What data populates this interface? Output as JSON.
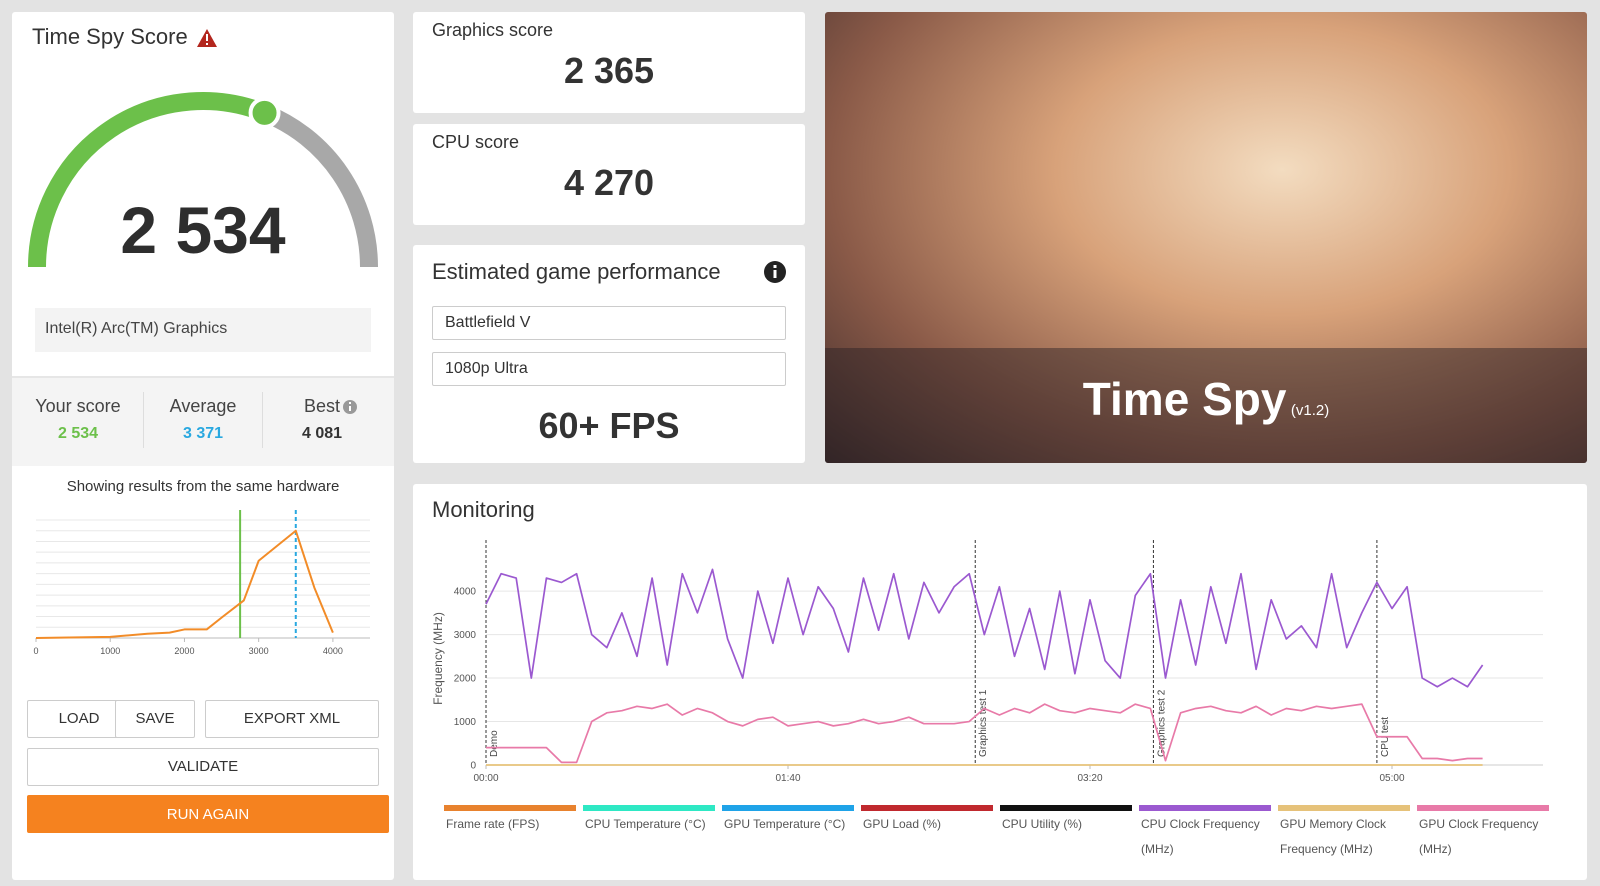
{
  "score_panel": {
    "title": "Time Spy Score",
    "score": {
      "value": 2534,
      "label": "2 534"
    },
    "hardware": "Intel(R) Arc(TM) Graphics",
    "stats": [
      {
        "name": "Your score",
        "value": {
          "value": 2534,
          "label": "2 534"
        },
        "color": "#6cc04a"
      },
      {
        "name": "Average",
        "value": {
          "value": 3371,
          "label": "3 371"
        },
        "color": "#29a8e0"
      },
      {
        "name": "Best",
        "value": {
          "value": 4081,
          "label": "4 081"
        },
        "color": "#333333"
      }
    ],
    "note": "Showing results from the same hardware"
  },
  "buttons": {
    "load": "LOAD",
    "save": "SAVE",
    "export": "EXPORT XML",
    "validate": "VALIDATE",
    "run": "RUN AGAIN"
  },
  "graphics": {
    "label": "Graphics score",
    "score": {
      "value": 2365,
      "label": "2 365"
    }
  },
  "cpu": {
    "label": "CPU score",
    "score": {
      "value": 4270,
      "label": "4 270"
    }
  },
  "game_performance": {
    "title": "Estimated game performance",
    "game": "Battlefield V",
    "preset": "1080p Ultra",
    "fps": "60+ FPS"
  },
  "banner": {
    "title": "Time Spy",
    "version": "(v1.2)"
  },
  "monitoring_title": "Monitoring",
  "chart_data": [
    {
      "type": "line",
      "x": [
        0,
        1000,
        1500,
        1800,
        2000,
        2300,
        2500,
        2800,
        3000,
        3500,
        3750,
        4000
      ],
      "values": [
        0,
        1,
        4,
        5,
        8,
        8,
        19,
        35,
        72,
        100,
        47,
        5
      ],
      "color": "#f28c28",
      "xlim": [
        0,
        4500
      ],
      "ylim": [
        0,
        110
      ],
      "xticks": [
        0,
        1000,
        2000,
        3000,
        4000
      ],
      "ygrid": [
        10,
        20,
        30,
        40,
        50,
        60,
        70,
        80,
        90,
        100,
        110
      ],
      "grid": true,
      "markers": [
        {
          "x": 2750,
          "color": "#6cc04a",
          "dashed": false
        },
        {
          "x": 3500,
          "color": "#29a8e0",
          "dashed": true
        }
      ]
    },
    {
      "type": "line",
      "ylabel": "Frequency (MHz)",
      "xlim": [
        0,
        350
      ],
      "ylim": [
        0,
        4900
      ],
      "xticks": [
        {
          "value": 0,
          "label": "00:00"
        },
        {
          "value": 100,
          "label": "01:40"
        },
        {
          "value": 200,
          "label": "03:20"
        },
        {
          "value": 300,
          "label": "05:00"
        }
      ],
      "yticks": [
        0,
        1000,
        2000,
        3000,
        4000
      ],
      "grid": true,
      "annotations": [
        {
          "x": 0,
          "label": "Demo"
        },
        {
          "x": 162,
          "label": "Graphics test 1"
        },
        {
          "x": 221,
          "label": "Graphics test 2"
        },
        {
          "x": 295,
          "label": "CPU test"
        }
      ],
      "x": [
        0,
        5,
        10,
        15,
        20,
        25,
        30,
        35,
        40,
        45,
        50,
        55,
        60,
        65,
        70,
        75,
        80,
        85,
        90,
        95,
        100,
        105,
        110,
        115,
        120,
        125,
        130,
        135,
        140,
        145,
        150,
        155,
        160,
        165,
        170,
        175,
        180,
        185,
        190,
        195,
        200,
        205,
        210,
        215,
        220,
        225,
        230,
        235,
        240,
        245,
        250,
        255,
        260,
        265,
        270,
        275,
        280,
        285,
        290,
        295,
        300,
        305,
        310,
        315,
        320,
        325,
        330
      ],
      "series": [
        {
          "name": "Frame rate (FPS)",
          "color": "#e8822e",
          "values": [
            null,
            null,
            null,
            null,
            null,
            null,
            null,
            null,
            null,
            null,
            null,
            null,
            null,
            null,
            null,
            null,
            null,
            null,
            null,
            null,
            null,
            null,
            null,
            null,
            null,
            null,
            null,
            null,
            null,
            null,
            null,
            null,
            null,
            null,
            null,
            null,
            null,
            null,
            null,
            null,
            null,
            null,
            null,
            null,
            null,
            null,
            null,
            null,
            null,
            null,
            null,
            null,
            null,
            null,
            null,
            null,
            null,
            null,
            null,
            null,
            null,
            null,
            null,
            null,
            null,
            null,
            null
          ]
        },
        {
          "name": "CPU Temperature (°C)",
          "color": "#2ee8c4",
          "values": [
            null,
            null,
            null,
            null,
            null,
            null,
            null,
            null,
            null,
            null,
            null,
            null,
            null,
            null,
            null,
            null,
            null,
            null,
            null,
            null,
            null,
            null,
            null,
            null,
            null,
            null,
            null,
            null,
            null,
            null,
            null,
            null,
            null,
            null,
            null,
            null,
            null,
            null,
            null,
            null,
            null,
            null,
            null,
            null,
            null,
            null,
            null,
            null,
            null,
            null,
            null,
            null,
            null,
            null,
            null,
            null,
            null,
            null,
            null,
            null,
            null,
            null,
            null,
            null,
            null,
            null,
            null
          ]
        },
        {
          "name": "GPU Temperature (°C)",
          "color": "#1fa3e8",
          "values": [
            null,
            null,
            null,
            null,
            null,
            null,
            null,
            null,
            null,
            null,
            null,
            null,
            null,
            null,
            null,
            null,
            null,
            null,
            null,
            null,
            null,
            null,
            null,
            null,
            null,
            null,
            null,
            null,
            null,
            null,
            null,
            null,
            null,
            null,
            null,
            null,
            null,
            null,
            null,
            null,
            null,
            null,
            null,
            null,
            null,
            null,
            null,
            null,
            null,
            null,
            null,
            null,
            null,
            null,
            null,
            null,
            null,
            null,
            null,
            null,
            null,
            null,
            null,
            null,
            null,
            null,
            null
          ]
        },
        {
          "name": "GPU Load (%)",
          "color": "#c0292e",
          "values": [
            null,
            null,
            null,
            null,
            null,
            null,
            null,
            null,
            null,
            null,
            null,
            null,
            null,
            null,
            null,
            null,
            null,
            null,
            null,
            null,
            null,
            null,
            null,
            null,
            null,
            null,
            null,
            null,
            null,
            null,
            null,
            null,
            null,
            null,
            null,
            null,
            null,
            null,
            null,
            null,
            null,
            null,
            null,
            null,
            null,
            null,
            null,
            null,
            null,
            null,
            null,
            null,
            null,
            null,
            null,
            null,
            null,
            null,
            null,
            null,
            null,
            null,
            null,
            null,
            null,
            null,
            null
          ]
        },
        {
          "name": "CPU Utility (%)",
          "color": "#111111",
          "values": [
            null,
            null,
            null,
            null,
            null,
            null,
            null,
            null,
            null,
            null,
            null,
            null,
            null,
            null,
            null,
            null,
            null,
            null,
            null,
            null,
            null,
            null,
            null,
            null,
            null,
            null,
            null,
            null,
            null,
            null,
            null,
            null,
            null,
            null,
            null,
            null,
            null,
            null,
            null,
            null,
            null,
            null,
            null,
            null,
            null,
            null,
            null,
            null,
            null,
            null,
            null,
            null,
            null,
            null,
            null,
            null,
            null,
            null,
            null,
            null,
            null,
            null,
            null,
            null,
            null,
            null,
            null
          ]
        },
        {
          "name": "CPU Clock Frequency (MHz)",
          "color": "#9b59d0",
          "values": [
            3700,
            4400,
            4300,
            2000,
            4300,
            4200,
            4400,
            3000,
            2700,
            3500,
            2500,
            4300,
            2300,
            4400,
            3500,
            4500,
            2900,
            2000,
            4000,
            2800,
            4300,
            3000,
            4100,
            3600,
            2600,
            4300,
            3100,
            4400,
            2900,
            4200,
            3500,
            4100,
            4400,
            3000,
            4100,
            2500,
            3600,
            2200,
            4000,
            2100,
            3800,
            2400,
            2000,
            3900,
            4400,
            2000,
            3800,
            2300,
            4100,
            2800,
            4400,
            2200,
            3800,
            2900,
            3200,
            2700,
            4400,
            2700,
            3500,
            4200,
            3600,
            4100,
            2000,
            1800,
            2000,
            1800,
            2300
          ]
        },
        {
          "name": "GPU Memory Clock Frequency (MHz)",
          "color": "#e6c27a",
          "values": [
            0,
            0,
            0,
            0,
            0,
            0,
            0,
            0,
            0,
            0,
            0,
            0,
            0,
            0,
            0,
            0,
            0,
            0,
            0,
            0,
            0,
            0,
            0,
            0,
            0,
            0,
            0,
            0,
            0,
            0,
            0,
            0,
            0,
            0,
            0,
            0,
            0,
            0,
            0,
            0,
            0,
            0,
            0,
            0,
            0,
            0,
            0,
            0,
            0,
            0,
            0,
            0,
            0,
            0,
            0,
            0,
            0,
            0,
            0,
            0,
            0,
            0,
            0,
            0,
            0,
            0,
            0
          ]
        },
        {
          "name": "GPU Clock Frequency (MHz)",
          "color": "#e87aa8",
          "values": [
            400,
            400,
            400,
            400,
            400,
            60,
            60,
            1000,
            1200,
            1250,
            1350,
            1300,
            1400,
            1150,
            1300,
            1200,
            1000,
            900,
            1050,
            1100,
            900,
            950,
            1000,
            900,
            950,
            1050,
            950,
            1000,
            1100,
            950,
            950,
            950,
            1000,
            1300,
            1150,
            1300,
            1200,
            1400,
            1250,
            1200,
            1300,
            1250,
            1200,
            1400,
            1300,
            100,
            1200,
            1300,
            1350,
            1250,
            1200,
            1350,
            1150,
            1300,
            1250,
            1350,
            1300,
            1350,
            1400,
            650,
            650,
            650,
            150,
            150,
            100,
            150,
            150
          ]
        }
      ]
    }
  ]
}
